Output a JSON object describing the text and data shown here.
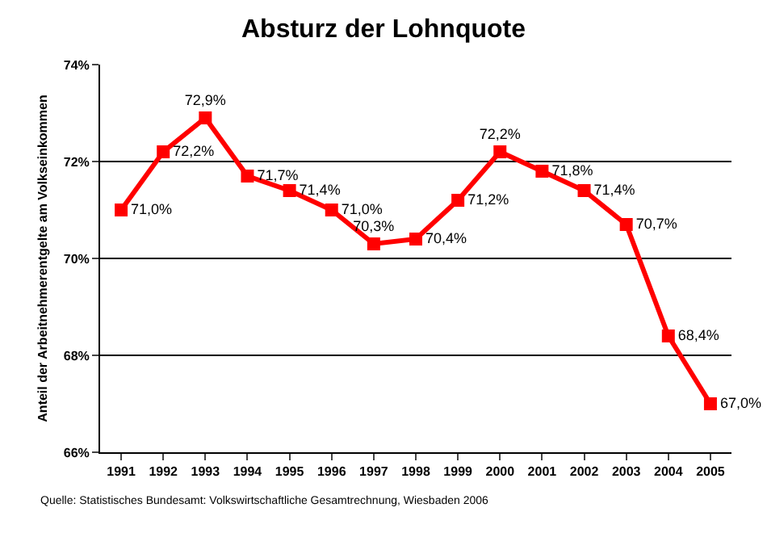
{
  "chart_data": {
    "type": "line",
    "title": "Absturz der Lohnquote",
    "ylabel": "Anteil der Arbeitnehmerentgelte am Volkseinkommen",
    "categories": [
      "1991",
      "1992",
      "1993",
      "1994",
      "1995",
      "1996",
      "1997",
      "1998",
      "1999",
      "2000",
      "2001",
      "2002",
      "2003",
      "2004",
      "2005"
    ],
    "series": [
      {
        "color": "#ff0000",
        "values": [
          71.0,
          72.2,
          72.9,
          71.7,
          71.4,
          71.0,
          70.3,
          70.4,
          71.2,
          72.2,
          71.8,
          71.4,
          70.7,
          68.4,
          67.0
        ],
        "value_labels": [
          "71,0%",
          "72,2%",
          "72,9%",
          "71,7%",
          "71,4%",
          "71,0%",
          "70,3%",
          "70,4%",
          "71,2%",
          "72,2%",
          "71,8%",
          "71,4%",
          "70,7%",
          "68,4%",
          "67,0%"
        ]
      }
    ],
    "ylim": [
      66,
      74
    ],
    "yticks": [
      {
        "value": 66,
        "label": "66%"
      },
      {
        "value": 68,
        "label": "68%"
      },
      {
        "value": 70,
        "label": "70%"
      },
      {
        "value": 72,
        "label": "72%"
      },
      {
        "value": 74,
        "label": "74%"
      }
    ],
    "grid": "y",
    "legend": false,
    "marker": "square",
    "line_style": "solid",
    "annotations": [
      "Quelle: Statistisches Bundesamt: Volkswirtschaftliche Gesamtrechnung, Wiesbaden 2006"
    ]
  }
}
